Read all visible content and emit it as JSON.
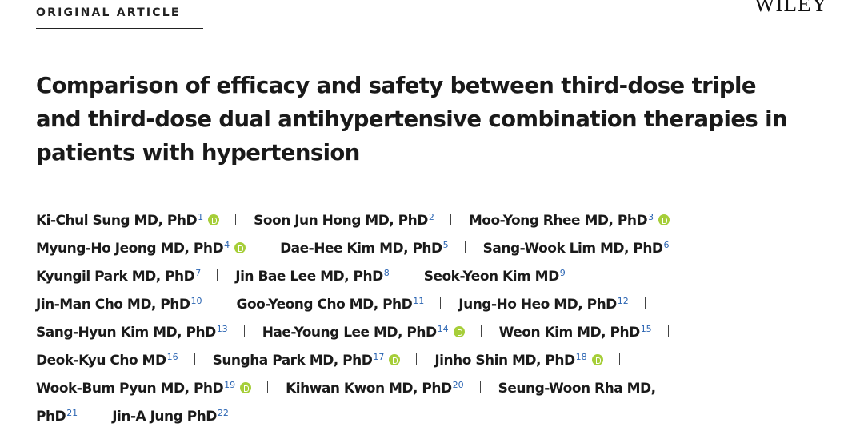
{
  "header": {
    "article_type": "ORIGINAL ARTICLE",
    "publisher": "WILEY"
  },
  "title_lines": [
    "Comparison of efficacy and safety between third-dose triple",
    "and third-dose dual antihypertensive combination therapies in",
    "patients with hypertension"
  ],
  "authors": [
    {
      "name": "Ki-Chul Sung MD, PhD",
      "aff": "1",
      "orcid": true
    },
    {
      "name": "Soon Jun Hong MD, PhD",
      "aff": "2",
      "orcid": false
    },
    {
      "name": "Moo-Yong Rhee MD, PhD",
      "aff": "3",
      "orcid": true
    },
    {
      "name": "Myung-Ho Jeong MD, PhD",
      "aff": "4",
      "orcid": true
    },
    {
      "name": "Dae-Hee Kim MD, PhD",
      "aff": "5",
      "orcid": false
    },
    {
      "name": "Sang-Wook Lim MD, PhD",
      "aff": "6",
      "orcid": false
    },
    {
      "name": "Kyungil Park MD, PhD",
      "aff": "7",
      "orcid": false
    },
    {
      "name": "Jin Bae Lee MD, PhD",
      "aff": "8",
      "orcid": false
    },
    {
      "name": "Seok-Yeon Kim MD",
      "aff": "9",
      "orcid": false
    },
    {
      "name": "Jin-Man Cho MD, PhD",
      "aff": "10",
      "orcid": false
    },
    {
      "name": "Goo-Yeong Cho MD, PhD",
      "aff": "11",
      "orcid": false
    },
    {
      "name": "Jung-Ho Heo MD, PhD",
      "aff": "12",
      "orcid": false
    },
    {
      "name": "Sang-Hyun Kim MD, PhD",
      "aff": "13",
      "orcid": false
    },
    {
      "name": "Hae-Young Lee MD, PhD",
      "aff": "14",
      "orcid": true
    },
    {
      "name": "Weon Kim MD, PhD",
      "aff": "15",
      "orcid": false
    },
    {
      "name": "Deok-Kyu Cho MD",
      "aff": "16",
      "orcid": false
    },
    {
      "name": "Sungha Park MD, PhD",
      "aff": "17",
      "orcid": true
    },
    {
      "name": "Jinho Shin MD, PhD",
      "aff": "18",
      "orcid": true
    },
    {
      "name": "Wook-Bum Pyun MD, PhD",
      "aff": "19",
      "orcid": true
    },
    {
      "name": "Kihwan Kwon MD, PhD",
      "aff": "20",
      "orcid": false
    },
    {
      "name": "Seung-Woon Rha MD,",
      "aff": "",
      "orcid": false
    },
    {
      "name": "PhD",
      "aff": "21",
      "orcid": false
    },
    {
      "name": "Jin-A Jung PhD",
      "aff": "22",
      "orcid": false
    }
  ],
  "author_rows": [
    {
      "items": [
        0,
        1,
        2
      ],
      "trailing_separator": true
    },
    {
      "items": [
        3,
        4,
        5
      ],
      "trailing_separator": true
    },
    {
      "items": [
        6,
        7,
        8
      ],
      "trailing_separator": true
    },
    {
      "items": [
        9,
        10,
        11
      ],
      "trailing_separator": true
    },
    {
      "items": [
        12,
        13,
        14
      ],
      "trailing_separator": true
    },
    {
      "items": [
        15,
        16,
        17
      ],
      "trailing_separator": true
    },
    {
      "items": [
        18,
        19,
        20
      ],
      "trailing_separator": false
    },
    {
      "items": [
        21,
        22
      ],
      "trailing_separator": false
    }
  ],
  "colors": {
    "orcid": "#a6ce39",
    "affiliation_link": "#2a64b2",
    "text": "#1a1a1a"
  }
}
